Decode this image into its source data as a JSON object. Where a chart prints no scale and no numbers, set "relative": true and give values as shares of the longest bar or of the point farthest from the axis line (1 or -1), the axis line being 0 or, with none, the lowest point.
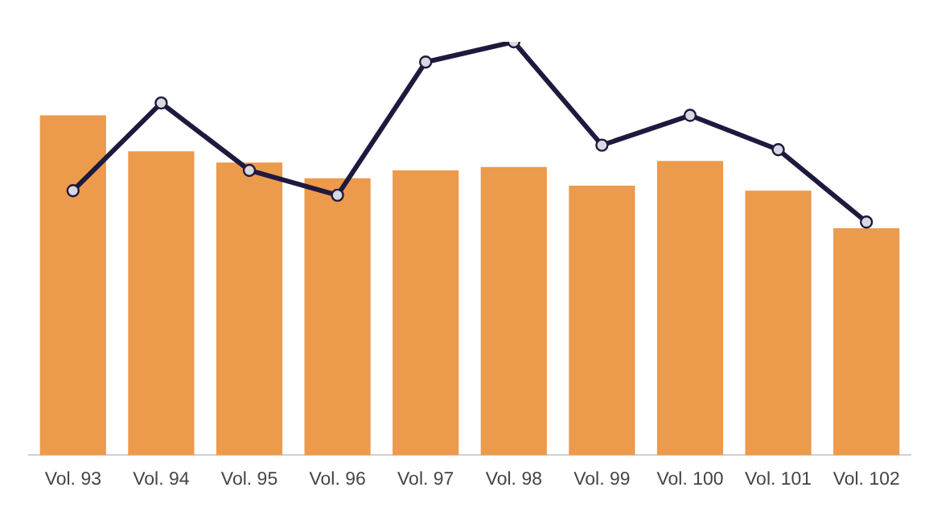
{
  "chart_data": {
    "type": "bar",
    "relative": true,
    "categories": [
      "Vol. 93",
      "Vol. 94",
      "Vol. 95",
      "Vol. 96",
      "Vol. 97",
      "Vol. 98",
      "Vol. 99",
      "Vol. 100",
      "Vol. 101",
      "Vol. 102"
    ],
    "series": [
      {
        "color": "#ec9a4c",
        "values": [
          0.822,
          0.735,
          0.708,
          0.67,
          0.689,
          0.697,
          0.652,
          0.712,
          0.64,
          0.549
        ]
      },
      {
        "type": "line",
        "color": "#1e1a3e",
        "marker": "circle",
        "values": [
          0.64,
          0.852,
          0.689,
          0.629,
          0.951,
          1,
          0.75,
          0.822,
          0.739,
          0.564
        ]
      }
    ],
    "grid": false,
    "legend": false
  }
}
